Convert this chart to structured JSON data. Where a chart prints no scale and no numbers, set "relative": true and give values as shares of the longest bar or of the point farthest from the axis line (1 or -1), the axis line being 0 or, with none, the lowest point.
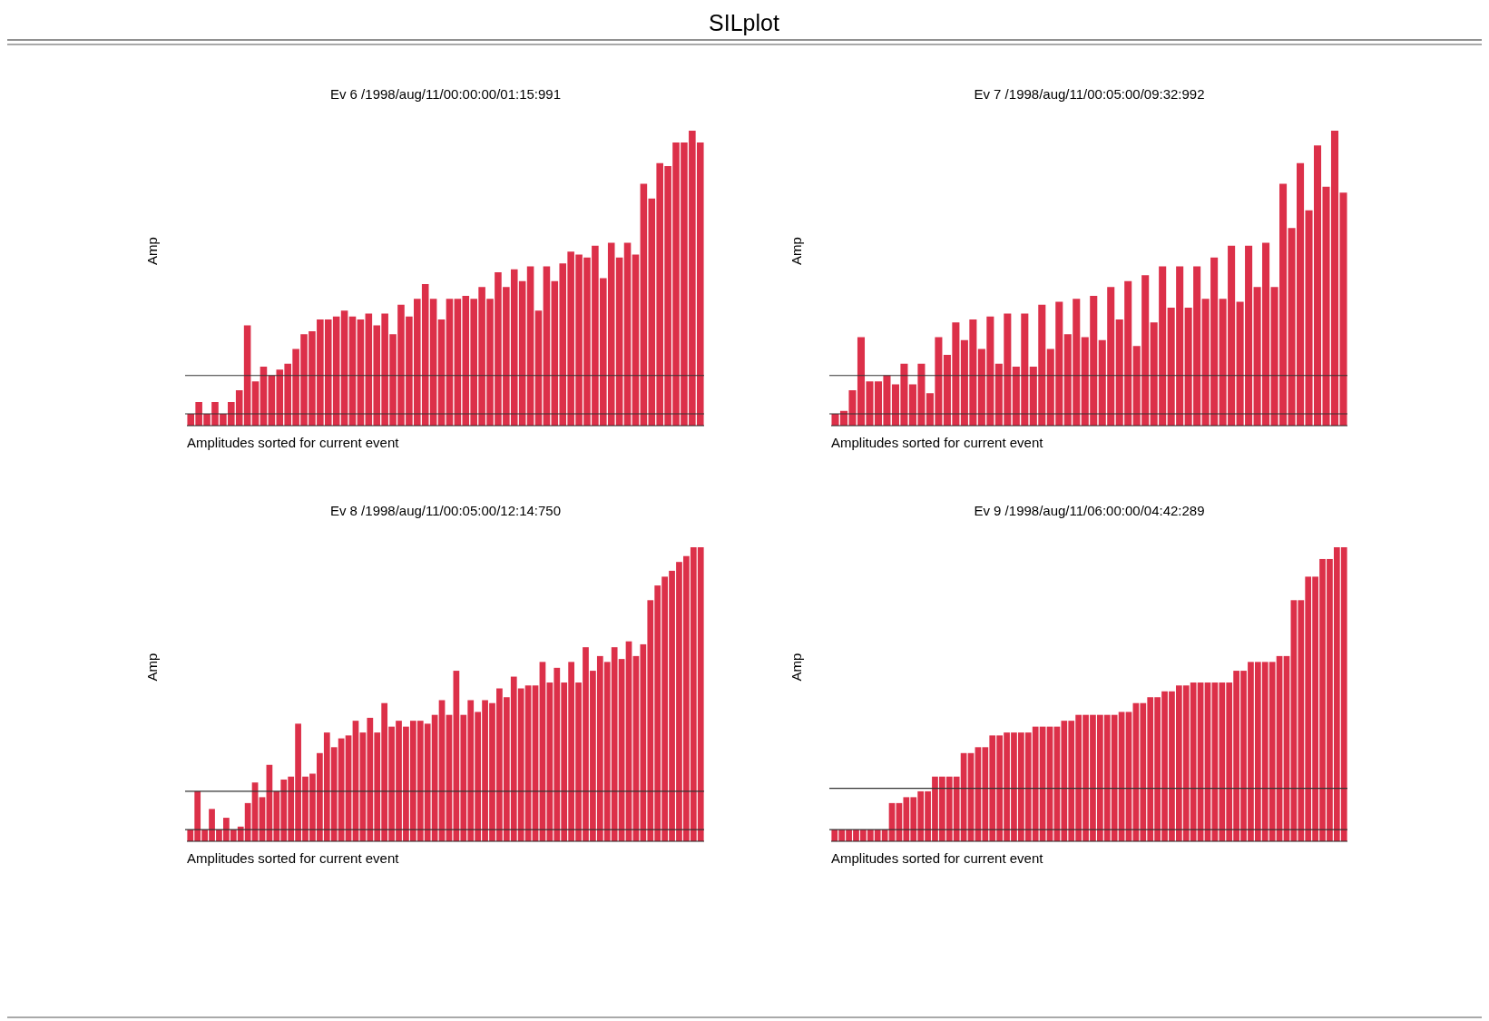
{
  "chart_data": [
    {
      "type": "other",
      "title": "SILplot"
    },
    {
      "type": "bar",
      "title": "Ev 6 /1998/aug/11/00:00:00/01:15:991",
      "ylabel": "Amp",
      "xlabel": "Amplitudes sorted for current event",
      "relative": true,
      "color": "#dc3049",
      "categories": [
        null,
        null,
        null,
        null,
        null,
        null,
        null,
        null,
        null,
        null,
        null,
        null,
        null,
        null,
        null,
        null,
        null,
        null,
        null,
        null,
        null,
        null,
        null,
        null,
        null,
        null,
        null,
        null,
        null,
        null,
        null,
        null,
        null,
        null,
        null,
        null,
        null,
        null,
        null,
        null,
        null,
        null,
        null,
        null,
        null,
        null,
        null,
        null,
        null,
        null,
        null,
        null,
        null,
        null,
        null,
        null,
        null,
        null,
        null,
        null,
        null,
        null,
        null,
        null
      ],
      "values": [
        0.04,
        0.08,
        0.04,
        0.08,
        0.04,
        0.08,
        0.12,
        0.34,
        0.15,
        0.2,
        0.17,
        0.19,
        0.21,
        0.26,
        0.31,
        0.32,
        0.36,
        0.36,
        0.37,
        0.39,
        0.37,
        0.36,
        0.38,
        0.34,
        0.38,
        0.31,
        0.41,
        0.37,
        0.43,
        0.48,
        0.43,
        0.36,
        0.43,
        0.43,
        0.44,
        0.43,
        0.47,
        0.43,
        0.52,
        0.47,
        0.53,
        0.49,
        0.54,
        0.39,
        0.54,
        0.49,
        0.55,
        0.59,
        0.58,
        0.57,
        0.61,
        0.5,
        0.62,
        0.57,
        0.62,
        0.58,
        0.82,
        0.77,
        0.89,
        0.88,
        0.96,
        0.96,
        1,
        0.96
      ],
      "ref_lines": [
        {
          "axis": "y",
          "value": 0.17,
          "color": "#333333"
        },
        {
          "axis": "y",
          "value": 0.04,
          "color": "#333333"
        }
      ]
    },
    {
      "type": "bar",
      "title": "Ev 7 /1998/aug/11/00:05:00/09:32:992",
      "ylabel": "Amp",
      "xlabel": "Amplitudes sorted for current event",
      "relative": true,
      "color": "#dc3049",
      "categories": [
        null,
        null,
        null,
        null,
        null,
        null,
        null,
        null,
        null,
        null,
        null,
        null,
        null,
        null,
        null,
        null,
        null,
        null,
        null,
        null,
        null,
        null,
        null,
        null,
        null,
        null,
        null,
        null,
        null,
        null,
        null,
        null,
        null,
        null,
        null,
        null,
        null,
        null,
        null,
        null,
        null,
        null,
        null,
        null,
        null,
        null,
        null,
        null,
        null,
        null,
        null,
        null,
        null,
        null,
        null,
        null,
        null,
        null,
        null,
        null
      ],
      "values": [
        0.04,
        0.05,
        0.12,
        0.3,
        0.15,
        0.15,
        0.17,
        0.14,
        0.21,
        0.14,
        0.21,
        0.11,
        0.3,
        0.24,
        0.35,
        0.29,
        0.36,
        0.26,
        0.37,
        0.21,
        0.38,
        0.2,
        0.38,
        0.2,
        0.41,
        0.26,
        0.42,
        0.31,
        0.43,
        0.3,
        0.44,
        0.29,
        0.47,
        0.36,
        0.49,
        0.27,
        0.51,
        0.35,
        0.54,
        0.4,
        0.54,
        0.4,
        0.54,
        0.43,
        0.57,
        0.43,
        0.61,
        0.42,
        0.61,
        0.47,
        0.62,
        0.47,
        0.82,
        0.67,
        0.89,
        0.73,
        0.95,
        0.81,
        1,
        0.79
      ],
      "ref_lines": [
        {
          "axis": "y",
          "value": 0.17,
          "color": "#333333"
        },
        {
          "axis": "y",
          "value": 0.04,
          "color": "#333333"
        }
      ]
    },
    {
      "type": "bar",
      "title": "Ev 8 /1998/aug/11/00:05:00/12:14:750",
      "ylabel": "Amp",
      "xlabel": "Amplitudes sorted for current event",
      "relative": true,
      "color": "#dc3049",
      "categories": [
        null,
        null,
        null,
        null,
        null,
        null,
        null,
        null,
        null,
        null,
        null,
        null,
        null,
        null,
        null,
        null,
        null,
        null,
        null,
        null,
        null,
        null,
        null,
        null,
        null,
        null,
        null,
        null,
        null,
        null,
        null,
        null,
        null,
        null,
        null,
        null,
        null,
        null,
        null,
        null,
        null,
        null,
        null,
        null,
        null,
        null,
        null,
        null,
        null,
        null,
        null,
        null,
        null,
        null,
        null,
        null,
        null,
        null,
        null,
        null,
        null,
        null,
        null,
        null,
        null,
        null,
        null,
        null,
        null,
        null,
        null,
        null
      ],
      "values": [
        0.04,
        0.17,
        0.04,
        0.11,
        0.04,
        0.08,
        0.04,
        0.05,
        0.13,
        0.2,
        0.15,
        0.26,
        0.17,
        0.21,
        0.22,
        0.4,
        0.22,
        0.23,
        0.3,
        0.37,
        0.32,
        0.35,
        0.36,
        0.41,
        0.37,
        0.42,
        0.37,
        0.47,
        0.39,
        0.41,
        0.39,
        0.41,
        0.41,
        0.4,
        0.43,
        0.48,
        0.43,
        0.58,
        0.43,
        0.48,
        0.44,
        0.48,
        0.47,
        0.52,
        0.49,
        0.56,
        0.52,
        0.53,
        0.53,
        0.61,
        0.54,
        0.59,
        0.54,
        0.61,
        0.54,
        0.66,
        0.58,
        0.63,
        0.61,
        0.66,
        0.62,
        0.68,
        0.63,
        0.67,
        0.82,
        0.87,
        0.9,
        0.92,
        0.95,
        0.97,
        1,
        1
      ],
      "ref_lines": [
        {
          "axis": "y",
          "value": 0.17,
          "color": "#333333"
        },
        {
          "axis": "y",
          "value": 0.04,
          "color": "#333333"
        }
      ]
    },
    {
      "type": "bar",
      "title": "Ev 9 /1998/aug/11/06:00:00/04:42:289",
      "ylabel": "Amp",
      "xlabel": "Amplitudes sorted for current event",
      "relative": true,
      "color": "#dc3049",
      "categories": [
        null,
        null,
        null,
        null,
        null,
        null,
        null,
        null,
        null,
        null,
        null,
        null,
        null,
        null,
        null,
        null,
        null,
        null,
        null,
        null,
        null,
        null,
        null,
        null,
        null,
        null,
        null,
        null,
        null,
        null,
        null,
        null,
        null,
        null,
        null,
        null,
        null,
        null,
        null,
        null,
        null,
        null,
        null,
        null,
        null,
        null,
        null,
        null,
        null,
        null,
        null,
        null,
        null,
        null,
        null,
        null,
        null,
        null,
        null,
        null,
        null,
        null,
        null,
        null,
        null,
        null,
        null,
        null,
        null,
        null,
        null,
        null
      ],
      "values": [
        0.04,
        0.04,
        0.04,
        0.04,
        0.04,
        0.04,
        0.04,
        0.04,
        0.13,
        0.13,
        0.15,
        0.15,
        0.17,
        0.17,
        0.22,
        0.22,
        0.22,
        0.22,
        0.3,
        0.3,
        0.32,
        0.32,
        0.36,
        0.36,
        0.37,
        0.37,
        0.37,
        0.37,
        0.39,
        0.39,
        0.39,
        0.39,
        0.41,
        0.41,
        0.43,
        0.43,
        0.43,
        0.43,
        0.43,
        0.43,
        0.44,
        0.44,
        0.47,
        0.47,
        0.49,
        0.49,
        0.51,
        0.51,
        0.53,
        0.53,
        0.54,
        0.54,
        0.54,
        0.54,
        0.54,
        0.54,
        0.58,
        0.58,
        0.61,
        0.61,
        0.61,
        0.61,
        0.63,
        0.63,
        0.82,
        0.82,
        0.9,
        0.9,
        0.96,
        0.96,
        1,
        1
      ],
      "ref_lines": [
        {
          "axis": "y",
          "value": 0.18,
          "color": "#333333"
        },
        {
          "axis": "y",
          "value": 0.04,
          "color": "#333333"
        }
      ]
    }
  ]
}
